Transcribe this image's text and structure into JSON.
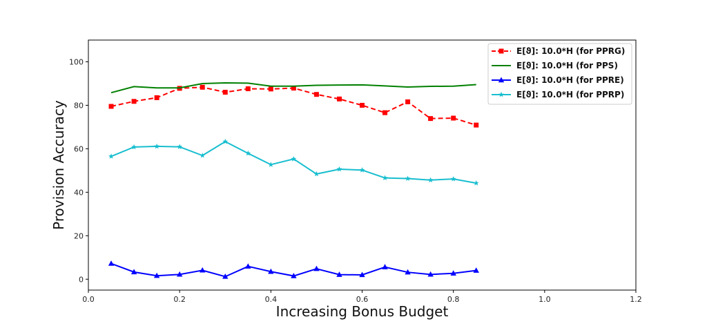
{
  "chart_data": {
    "type": "line",
    "xlabel": "Increasing Bonus Budget",
    "ylabel": "Provision Accuracy",
    "xlim": [
      0.0,
      1.2
    ],
    "ylim": [
      -5,
      110
    ],
    "xticks": [
      0.0,
      0.2,
      0.4,
      0.6,
      0.8,
      1.0,
      1.2
    ],
    "xtick_labels": [
      "0.0",
      "0.2",
      "0.4",
      "0.6",
      "0.8",
      "1.0",
      "1.2"
    ],
    "yticks": [
      0,
      20,
      40,
      60,
      80,
      100
    ],
    "ytick_labels": [
      "0",
      "20",
      "40",
      "60",
      "80",
      "100"
    ],
    "grid": false,
    "legend_position": "top-right",
    "x": [
      0.05,
      0.1,
      0.15,
      0.2,
      0.25,
      0.3,
      0.35,
      0.4,
      0.45,
      0.5,
      0.55,
      0.6,
      0.65,
      0.7,
      0.75,
      0.8,
      0.85
    ],
    "series": [
      {
        "name": "E[ϑ]: 10.0*H (for PPRG)",
        "color": "#ff0000",
        "dash": "dashed",
        "marker": "square",
        "values": [
          79.5,
          81.8,
          83.5,
          87.8,
          88.3,
          86.0,
          87.6,
          87.5,
          87.9,
          85.0,
          82.9,
          80.0,
          76.6,
          81.6,
          73.9,
          74.1,
          70.9
        ]
      },
      {
        "name": "E[ϑ]: 10.0*H (for PPS)",
        "color": "#008000",
        "dash": "solid",
        "marker": "none",
        "values": [
          85.8,
          88.6,
          88.0,
          88.0,
          90.0,
          90.3,
          90.2,
          88.8,
          88.8,
          89.2,
          89.3,
          89.4,
          88.9,
          88.4,
          88.7,
          88.8,
          89.5
        ]
      },
      {
        "name": "E[ϑ]: 10.0*H (for PPRE)",
        "color": "#0000ff",
        "dash": "solid",
        "marker": "triangle",
        "values": [
          7.2,
          3.3,
          1.6,
          2.2,
          4.1,
          1.2,
          5.9,
          3.5,
          1.5,
          4.8,
          2.1,
          2.0,
          5.6,
          3.2,
          2.2,
          2.7,
          4.0
        ]
      },
      {
        "name": "E[ϑ]: 10.0*H (for PPRP)",
        "color": "#17becf",
        "dash": "solid",
        "marker": "star",
        "values": [
          56.5,
          60.8,
          61.1,
          60.9,
          56.9,
          63.3,
          57.9,
          52.7,
          55.3,
          48.4,
          50.6,
          50.2,
          46.6,
          46.3,
          45.6,
          46.1,
          44.2
        ]
      }
    ]
  }
}
